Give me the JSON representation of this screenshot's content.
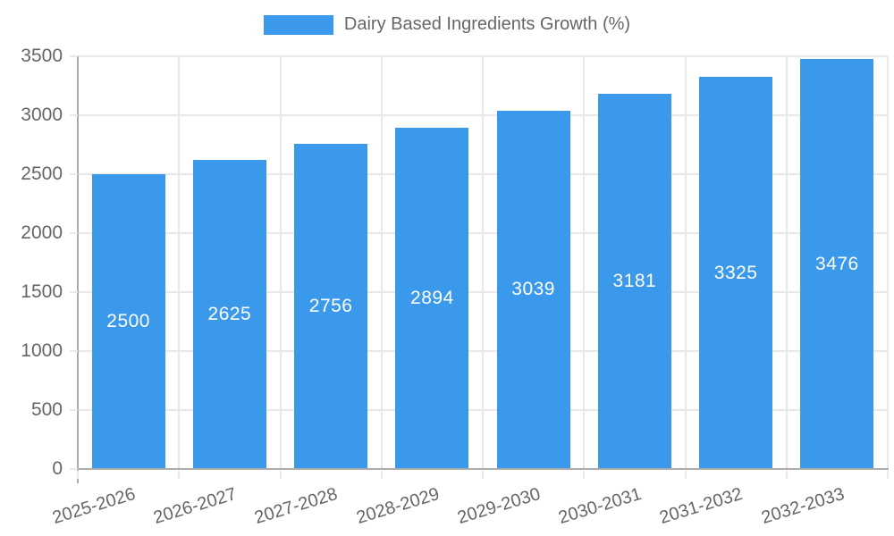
{
  "colors": {
    "bar": "#3B99EC",
    "value_label": "#FFFFFF",
    "axis_text": "#666666",
    "grid_line": "#E8E8E8",
    "axis_line": "#ABABAB",
    "background": "#FFFFFF"
  },
  "chart_data": {
    "type": "bar",
    "title": "",
    "series_name": "Dairy Based Ingredients Growth (%)",
    "categories": [
      "2025-2026",
      "2026-2027",
      "2027-2028",
      "2028-2029",
      "2029-2030",
      "2030-2031",
      "2031-2032",
      "2032-2033"
    ],
    "values": [
      2500,
      2625,
      2756,
      2894,
      3039,
      3181,
      3325,
      3476
    ],
    "xlabel": "",
    "ylabel": "",
    "ylim": [
      0,
      3500
    ],
    "yticks": [
      0,
      500,
      1000,
      1500,
      2000,
      2500,
      3000,
      3500
    ],
    "grid": true,
    "legend_position": "top-center",
    "value_label_position": "inside-center",
    "xtick_rotation_deg": -17
  }
}
